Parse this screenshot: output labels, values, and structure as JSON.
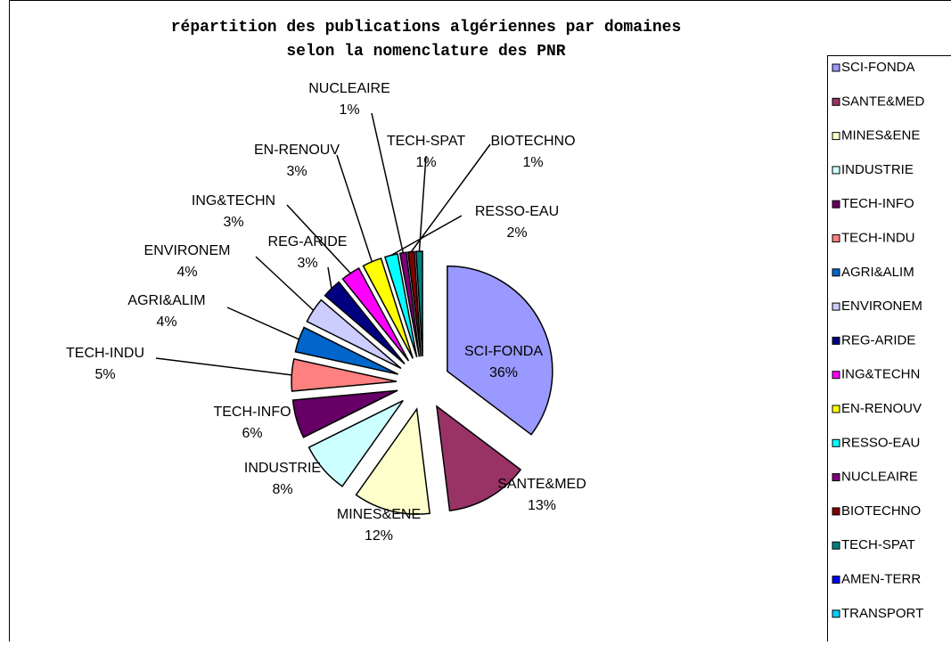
{
  "chart_data": {
    "type": "pie",
    "title": [
      "répartition des publications algériennes par domaines",
      "selon la nomenclature des PNR"
    ],
    "categories": [
      "SCI-FONDA",
      "SANTE&MED",
      "MINES&ENE",
      "INDUSTRIE",
      "TECH-INFO",
      "TECH-INDU",
      "AGRI&ALIM",
      "ENVIRONEM",
      "REG-ARIDE",
      "ING&TECHN",
      "EN-RENOUV",
      "RESSO-EAU",
      "NUCLEAIRE",
      "BIOTECHNO",
      "TECH-SPAT",
      "AMEN-TERR",
      "TRANSPORT"
    ],
    "values": [
      36,
      13,
      12,
      8,
      6,
      5,
      4,
      4,
      3,
      3,
      3,
      2,
      1,
      1,
      1,
      0,
      0
    ],
    "value_labels": [
      "36%",
      "13%",
      "12%",
      "8%",
      "6%",
      "5%",
      "4%",
      "4%",
      "3%",
      "3%",
      "3%",
      "2%",
      "1%",
      "1%",
      "1%",
      null,
      null
    ],
    "colors": [
      "#9999ff",
      "#993366",
      "#ffffcc",
      "#ccffff",
      "#660066",
      "#ff8080",
      "#0066cc",
      "#ccccff",
      "#000080",
      "#ff00ff",
      "#ffff00",
      "#00ffff",
      "#800080",
      "#800000",
      "#008080",
      "#0000ff",
      "#00ccff"
    ],
    "legend": "right"
  }
}
